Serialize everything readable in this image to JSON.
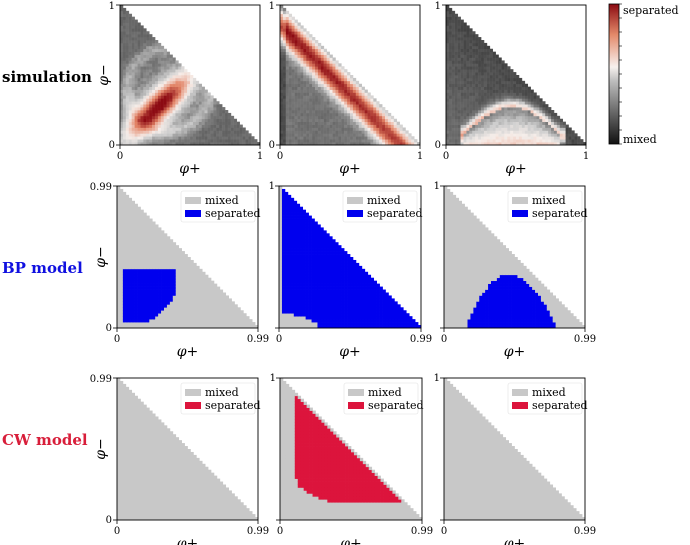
{
  "row_labels": [
    {
      "text": "simulation",
      "color": "#000000"
    },
    {
      "text": "BP model",
      "color": "#1010e0"
    },
    {
      "text": "CW model",
      "color": "#d81e3a"
    }
  ],
  "axis_labels": {
    "x": "φ+",
    "y": "φ−"
  },
  "colorbar": {
    "top_label": "separated",
    "bottom_label": "mixed"
  },
  "legend": {
    "mixed_label": "mixed",
    "separated_label": "separated"
  },
  "colors": {
    "mixed_gray": "#c8c8c8",
    "bp_blue": "#0000ee",
    "cw_red": "#dc143c"
  },
  "chart_data": [
    {
      "type": "heatmap",
      "row": "simulation",
      "panel": 1,
      "xlim": [
        0,
        1
      ],
      "ylim": [
        0,
        1
      ],
      "xticks": [
        "0",
        "1"
      ],
      "yticks": [
        "0",
        "1"
      ],
      "scale": "mixed to separated",
      "region": "elongated separated band along diagonal x ≈ y, up to about 0.5"
    },
    {
      "type": "heatmap",
      "row": "simulation",
      "panel": 2,
      "xlim": [
        0,
        1
      ],
      "ylim": [
        0,
        1
      ],
      "xticks": [
        "0",
        "1"
      ],
      "yticks": [
        "0",
        "1"
      ],
      "scale": "mixed to separated",
      "region": "separated band along the upper boundary x + y = 1"
    },
    {
      "type": "heatmap",
      "row": "simulation",
      "panel": 3,
      "xlim": [
        0,
        1
      ],
      "ylim": [
        0,
        1
      ],
      "xticks": [
        "0",
        "1"
      ],
      "yticks": [
        "0",
        "1"
      ],
      "scale": "mixed to separated",
      "region": "weakly separated region at low φ−, 0.15 ≤ φ+ ≤ 0.75"
    },
    {
      "type": "heatmap",
      "row": "BP model",
      "panel": 1,
      "xlim": [
        0,
        0.99
      ],
      "ylim": [
        0,
        0.99
      ],
      "xticks": [
        "0",
        "0.99"
      ],
      "yticks": [
        "0",
        "0.99"
      ],
      "legend": [
        "mixed",
        "separated"
      ],
      "region": "lens-shaped separated area: φ+ 0.05 to 0.4, φ− 0.05 to 0.4"
    },
    {
      "type": "heatmap",
      "row": "BP model",
      "panel": 2,
      "xlim": [
        0,
        0.99
      ],
      "ylim": [
        0,
        0.99
      ],
      "xticks": [
        "0",
        "0.99"
      ],
      "yticks": [
        "1"
      ],
      "legend": [
        "mixed",
        "separated"
      ],
      "region": "separated over most of the triangle, mixed near the origin corner"
    },
    {
      "type": "heatmap",
      "row": "BP model",
      "panel": 3,
      "xlim": [
        0,
        0.99
      ],
      "ylim": [
        0,
        0.99
      ],
      "xticks": [
        "0",
        "0.99"
      ],
      "yticks": [
        "1"
      ],
      "legend": [
        "mixed",
        "separated"
      ],
      "region": "dome-shaped separated area at low φ−, φ+ 0.15 to 0.8, peak φ− ≈ 0.4"
    },
    {
      "type": "heatmap",
      "row": "CW model",
      "panel": 1,
      "xlim": [
        0,
        0.99
      ],
      "ylim": [
        0,
        0.99
      ],
      "xticks": [
        "0",
        "0.99"
      ],
      "yticks": [
        "0",
        "0.99"
      ],
      "legend": [
        "mixed",
        "separated"
      ],
      "region": "entirely mixed"
    },
    {
      "type": "heatmap",
      "row": "CW model",
      "panel": 2,
      "xlim": [
        0,
        0.99
      ],
      "ylim": [
        0,
        0.99
      ],
      "xticks": [
        "0",
        "0.99"
      ],
      "yticks": [
        "1"
      ],
      "legend": [
        "mixed",
        "separated"
      ],
      "region": "separated region: φ+ 0.1 to 0.85, φ− 0.1 to 0.88"
    },
    {
      "type": "heatmap",
      "row": "CW model",
      "panel": 3,
      "xlim": [
        0,
        0.99
      ],
      "ylim": [
        0,
        0.99
      ],
      "xticks": [
        "0",
        "0.99"
      ],
      "yticks": [
        "1"
      ],
      "legend": [
        "mixed",
        "separated"
      ],
      "region": "entirely mixed"
    }
  ]
}
